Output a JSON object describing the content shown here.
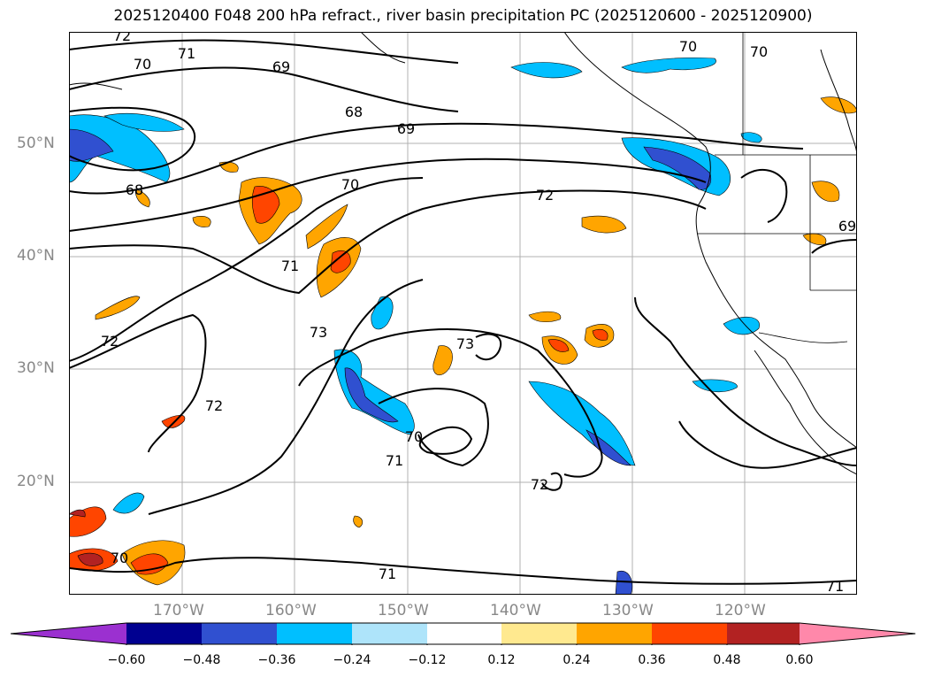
{
  "title": "2025120400 F048 200 hPa refract., river basin precipitation PC (2025120600 - 2025120900)",
  "map": {
    "lat_labels": [
      "50°N",
      "40°N",
      "30°N",
      "20°N"
    ],
    "lon_labels": [
      "170°W",
      "160°W",
      "150°W",
      "140°W",
      "130°W",
      "120°W"
    ],
    "contour_labels": [
      "72",
      "71",
      "70",
      "69",
      "68",
      "69",
      "70",
      "70",
      "68",
      "70",
      "72",
      "71",
      "72",
      "72",
      "73",
      "73",
      "70",
      "71",
      "72",
      "70",
      "71",
      "71",
      "69"
    ]
  },
  "colorbar": {
    "colors": [
      "#9b30d0",
      "#000090",
      "#3050d0",
      "#00bfff",
      "#aee4fa",
      "#ffffff",
      "#ffe98f",
      "#ffa500",
      "#ff4500",
      "#b22222",
      "#ff88aa"
    ],
    "tick_labels": [
      "−0.60",
      "−0.48",
      "−0.36",
      "−0.24",
      "−0.12",
      "0.12",
      "0.24",
      "0.36",
      "0.48",
      "0.60"
    ]
  }
}
